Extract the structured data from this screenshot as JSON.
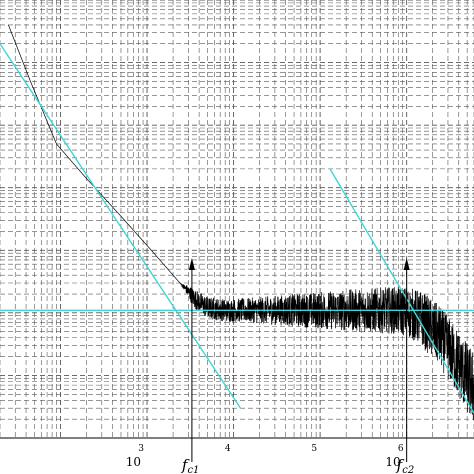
{
  "chart_data": {
    "type": "line",
    "x_scale": "log",
    "y_scale": "log",
    "xlim": [
      20,
      6000000
    ],
    "ylim": [
      0.0001,
      1000
    ],
    "grid": true,
    "grid_style": "dashed",
    "x_tick_labels": [
      {
        "value": 1000,
        "base": "10",
        "exp": "3"
      },
      {
        "value": 10000,
        "base": "",
        "exp": "4"
      },
      {
        "value": 100000,
        "base": "",
        "exp": "5"
      },
      {
        "value": 1000000,
        "base": "10",
        "exp": "6"
      }
    ],
    "annotations": [
      {
        "text": "f",
        "sub": "c1",
        "x": 3300
      },
      {
        "text": "f",
        "sub": "c2",
        "x": 1000000
      }
    ],
    "series": [
      {
        "color": "#000000",
        "style": "noisy-spectrum",
        "x": [
          25,
          45,
          90,
          200,
          500,
          1200,
          2400,
          3000,
          3500,
          5000,
          8000,
          15000,
          40000,
          100000,
          300000,
          700000,
          1000000,
          1500000,
          2500000,
          4000000,
          6000000
        ],
        "y": [
          400,
          50,
          5,
          1.4,
          0.35,
          0.09,
          0.03,
          0.022,
          0.017,
          0.012,
          0.011,
          0.011,
          0.011,
          0.011,
          0.011,
          0.011,
          0.0105,
          0.008,
          0.004,
          0.0015,
          0.0006
        ],
        "noise_amplitude": [
          0,
          0,
          0,
          0,
          0,
          0,
          0,
          0.1,
          0.16,
          0.18,
          0.18,
          0.2,
          0.25,
          0.3,
          0.35,
          0.38,
          0.4,
          0.45,
          0.5,
          0.55,
          0.6
        ]
      },
      {
        "color": "#3fd6d6",
        "style": "asymptote",
        "x": [
          20,
          12000
        ],
        "y": [
          200,
          0.0003
        ]
      },
      {
        "color": "#3fd6d6",
        "style": "asymptote",
        "x": [
          20,
          6000000
        ],
        "y": [
          0.011,
          0.011
        ]
      },
      {
        "color": "#3fd6d6",
        "style": "asymptote",
        "x": [
          130000,
          6000000
        ],
        "y": [
          2.0,
          0.00025
        ]
      }
    ]
  }
}
